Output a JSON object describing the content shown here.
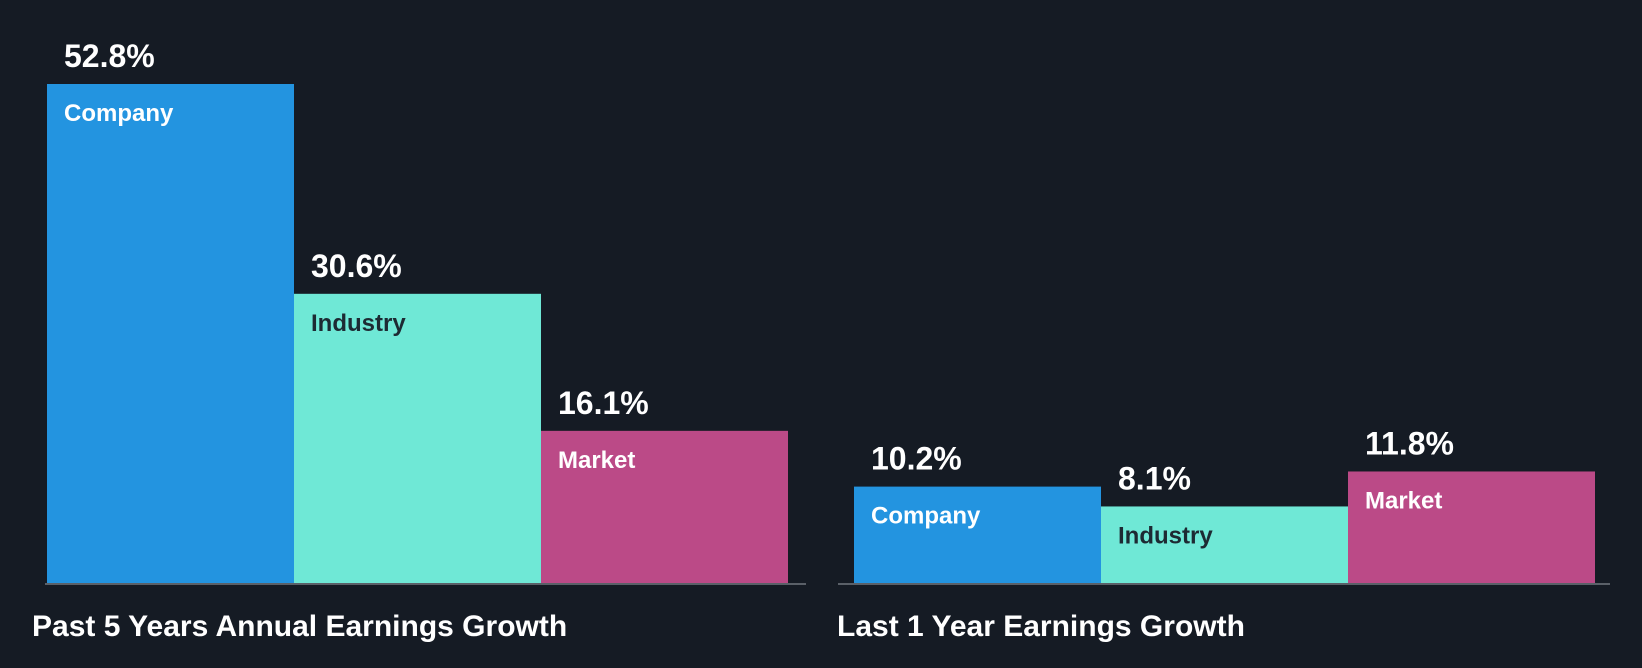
{
  "chart_data": [
    {
      "type": "bar",
      "title": "Past 5 Years Annual Earnings Growth",
      "categories": [
        "Company",
        "Industry",
        "Market"
      ],
      "values": [
        52.8,
        30.6,
        16.1
      ],
      "value_labels": [
        "52.8%",
        "30.6%",
        "16.1%"
      ],
      "colors": [
        "#2394e0",
        "#6fe8d6",
        "#bb4a87"
      ],
      "label_colors": [
        "#ffffff",
        "#1d2a33",
        "#ffffff"
      ],
      "xlabel": "",
      "ylabel": "",
      "ylim": [
        0,
        52.8
      ],
      "grid": false,
      "legend": "none"
    },
    {
      "type": "bar",
      "title": "Last 1 Year Earnings Growth",
      "categories": [
        "Company",
        "Industry",
        "Market"
      ],
      "values": [
        10.2,
        8.1,
        11.8
      ],
      "value_labels": [
        "10.2%",
        "8.1%",
        "11.8%"
      ],
      "colors": [
        "#2394e0",
        "#6fe8d6",
        "#bb4a87"
      ],
      "label_colors": [
        "#ffffff",
        "#1d2a33",
        "#ffffff"
      ],
      "xlabel": "",
      "ylabel": "",
      "ylim": [
        0,
        52.8
      ],
      "grid": false,
      "legend": "none"
    }
  ]
}
